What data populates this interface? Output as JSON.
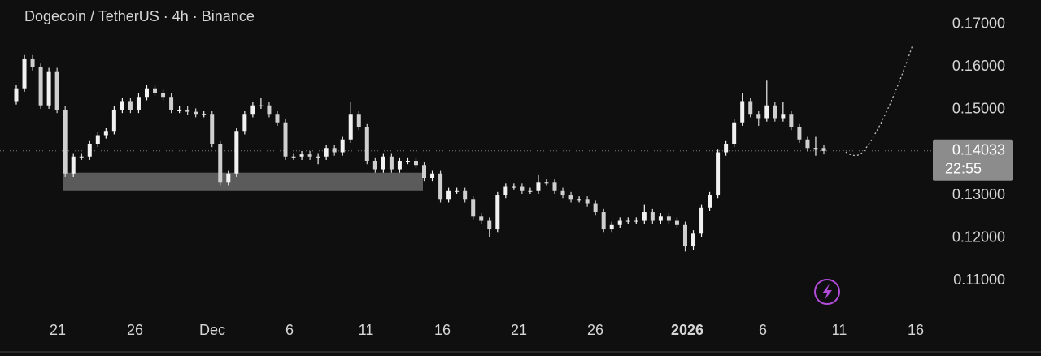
{
  "chart_data": {
    "type": "candlestick",
    "title": "Dogecoin / TetherUS · 4h · Binance",
    "color": "#f2f2f2",
    "down_color": "#cfcfcf",
    "ylim": [
      0.1024,
      0.1757
    ],
    "yticks": [
      {
        "value": 0.17,
        "label": "0.17000"
      },
      {
        "value": 0.16,
        "label": "0.16000"
      },
      {
        "value": 0.15,
        "label": "0.15000"
      },
      {
        "value": 0.13,
        "label": "0.13000"
      },
      {
        "value": 0.12,
        "label": "0.12000"
      },
      {
        "value": 0.11,
        "label": "0.11000"
      }
    ],
    "x_labels": [
      "21",
      "26",
      "Dec",
      "6",
      "11",
      "16",
      "21",
      "26",
      "2026",
      "6",
      "11",
      "16"
    ],
    "last_price": {
      "value": 0.14033,
      "label": "0.14033"
    },
    "countdown": "22:55",
    "zone": [
      0.131,
      0.1352
    ],
    "open": [
      0.152,
      0.155,
      0.162,
      0.16,
      0.151,
      0.159,
      0.15,
      0.135,
      0.139,
      0.139,
      0.142,
      0.144,
      0.145,
      0.15,
      0.152,
      0.15,
      0.153,
      0.155,
      0.154,
      0.153,
      0.15,
      0.15,
      0.1495,
      0.149,
      0.149,
      0.142,
      0.133,
      0.135,
      0.145,
      0.149,
      0.151,
      0.151,
      0.149,
      0.147,
      0.139,
      0.139,
      0.1395,
      0.139,
      0.139,
      0.141,
      0.14,
      0.143,
      0.149,
      0.146,
      0.138,
      0.136,
      0.139,
      0.136,
      0.138,
      0.138,
      0.137,
      0.134,
      0.135,
      0.129,
      0.131,
      0.131,
      0.129,
      0.125,
      0.124,
      0.122,
      0.13,
      0.132,
      0.132,
      0.131,
      0.131,
      0.133,
      0.133,
      0.131,
      0.13,
      0.129,
      0.129,
      0.128,
      0.126,
      0.122,
      0.123,
      0.124,
      0.124,
      0.124,
      0.126,
      0.124,
      0.125,
      0.124,
      0.123,
      0.118,
      0.121,
      0.127,
      0.13,
      0.14,
      0.142,
      0.147,
      0.152,
      0.149,
      0.148,
      0.151,
      0.148,
      0.149,
      0.146,
      0.143,
      0.141,
      0.141
    ],
    "high": [
      0.1558,
      0.1628,
      0.1628,
      0.1608,
      0.1598,
      0.1598,
      0.1508,
      0.1398,
      0.1398,
      0.1428,
      0.1448,
      0.1458,
      0.1508,
      0.1528,
      0.1528,
      0.1538,
      0.1558,
      0.1558,
      0.1548,
      0.1538,
      0.1508,
      0.1508,
      0.1503,
      0.1498,
      0.1498,
      0.1428,
      0.1358,
      0.1458,
      0.1498,
      0.1518,
      0.1528,
      0.1518,
      0.1498,
      0.1478,
      0.1398,
      0.1403,
      0.1403,
      0.1398,
      0.1418,
      0.1418,
      0.1438,
      0.1518,
      0.1498,
      0.1468,
      0.1388,
      0.1398,
      0.1398,
      0.1388,
      0.1388,
      0.1388,
      0.1378,
      0.1358,
      0.1358,
      0.1318,
      0.1318,
      0.1318,
      0.1298,
      0.1258,
      0.1248,
      0.1308,
      0.1328,
      0.1328,
      0.1328,
      0.1318,
      0.1348,
      0.1338,
      0.1338,
      0.1318,
      0.1308,
      0.1298,
      0.1298,
      0.1288,
      0.1268,
      0.1238,
      0.1248,
      0.1248,
      0.1248,
      0.1278,
      0.1268,
      0.1258,
      0.1258,
      0.1248,
      0.1238,
      0.1218,
      0.1278,
      0.1308,
      0.1408,
      0.1428,
      0.1478,
      0.1538,
      0.1528,
      0.1498,
      0.1568,
      0.1518,
      0.1518,
      0.1498,
      0.1468,
      0.1438,
      0.1438,
      0.1418
    ],
    "low": [
      0.1512,
      0.1542,
      0.1592,
      0.1502,
      0.1502,
      0.1492,
      0.1342,
      0.1342,
      0.1382,
      0.1382,
      0.1412,
      0.1432,
      0.1442,
      0.1492,
      0.1492,
      0.1492,
      0.1522,
      0.1532,
      0.1522,
      0.1492,
      0.1492,
      0.1487,
      0.1482,
      0.1482,
      0.1412,
      0.1322,
      0.1322,
      0.1342,
      0.1442,
      0.1482,
      0.1502,
      0.1482,
      0.1462,
      0.1382,
      0.1382,
      0.1382,
      0.1382,
      0.1372,
      0.1382,
      0.1392,
      0.1392,
      0.1422,
      0.1452,
      0.1372,
      0.1352,
      0.1352,
      0.1352,
      0.1352,
      0.1372,
      0.1362,
      0.1332,
      0.1332,
      0.1282,
      0.1282,
      0.1302,
      0.1282,
      0.1242,
      0.1232,
      0.1202,
      0.1212,
      0.1292,
      0.1312,
      0.1302,
      0.1302,
      0.1302,
      0.1322,
      0.1302,
      0.1292,
      0.1282,
      0.1282,
      0.1272,
      0.1252,
      0.1212,
      0.1212,
      0.1222,
      0.1232,
      0.1232,
      0.1232,
      0.1232,
      0.1232,
      0.1232,
      0.1222,
      0.1168,
      0.1172,
      0.1202,
      0.1262,
      0.1292,
      0.1392,
      0.1412,
      0.1462,
      0.1482,
      0.1462,
      0.1472,
      0.1472,
      0.1472,
      0.1452,
      0.1422,
      0.1402,
      0.1392,
      0.1395
    ],
    "close": [
      0.155,
      0.162,
      0.16,
      0.151,
      0.159,
      0.15,
      0.135,
      0.139,
      0.139,
      0.142,
      0.144,
      0.145,
      0.15,
      0.152,
      0.15,
      0.153,
      0.155,
      0.154,
      0.153,
      0.15,
      0.15,
      0.1495,
      0.149,
      0.149,
      0.142,
      0.133,
      0.135,
      0.145,
      0.149,
      0.151,
      0.151,
      0.149,
      0.147,
      0.139,
      0.139,
      0.1395,
      0.139,
      0.139,
      0.141,
      0.14,
      0.143,
      0.149,
      0.146,
      0.138,
      0.136,
      0.139,
      0.136,
      0.138,
      0.138,
      0.137,
      0.134,
      0.135,
      0.129,
      0.131,
      0.131,
      0.129,
      0.125,
      0.124,
      0.122,
      0.13,
      0.132,
      0.132,
      0.131,
      0.131,
      0.133,
      0.133,
      0.131,
      0.13,
      0.129,
      0.129,
      0.128,
      0.126,
      0.122,
      0.123,
      0.124,
      0.124,
      0.124,
      0.126,
      0.124,
      0.125,
      0.124,
      0.123,
      0.118,
      0.121,
      0.127,
      0.13,
      0.14,
      0.142,
      0.147,
      0.152,
      0.149,
      0.148,
      0.151,
      0.148,
      0.149,
      0.146,
      0.143,
      0.141,
      0.141,
      0.1403
    ]
  }
}
